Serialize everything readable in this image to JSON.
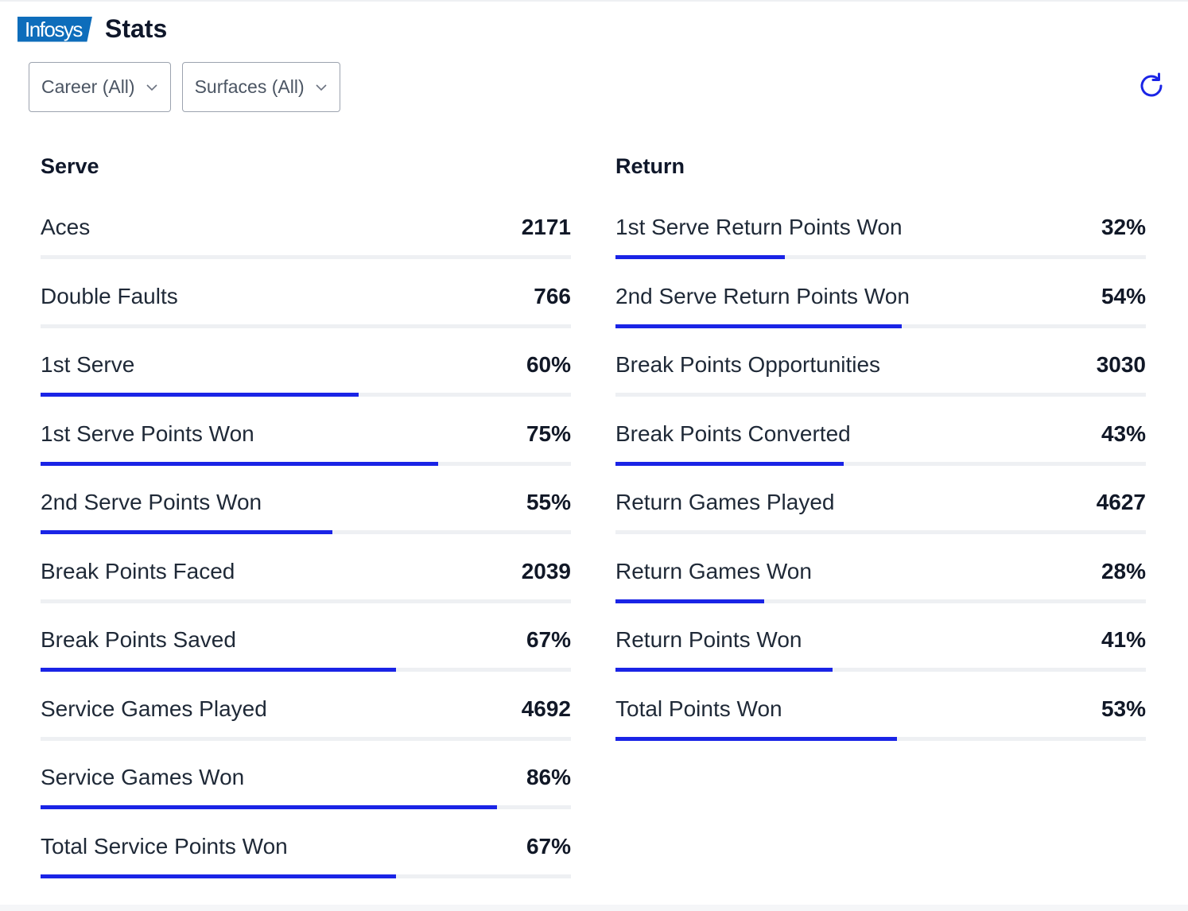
{
  "header": {
    "logo_text": "Infosys",
    "title": "Stats"
  },
  "filters": [
    {
      "label": "Career (All)"
    },
    {
      "label": "Surfaces (All)"
    }
  ],
  "accent_color": "#1a24e6",
  "serve": {
    "heading": "Serve",
    "rows": [
      {
        "label": "Aces",
        "value": "2171"
      },
      {
        "label": "Double Faults",
        "value": "766"
      },
      {
        "label": "1st Serve",
        "value": "60%",
        "percent": 60
      },
      {
        "label": "1st Serve Points Won",
        "value": "75%",
        "percent": 75
      },
      {
        "label": "2nd Serve Points Won",
        "value": "55%",
        "percent": 55
      },
      {
        "label": "Break Points Faced",
        "value": "2039"
      },
      {
        "label": "Break Points Saved",
        "value": "67%",
        "percent": 67
      },
      {
        "label": "Service Games Played",
        "value": "4692"
      },
      {
        "label": "Service Games Won",
        "value": "86%",
        "percent": 86
      },
      {
        "label": "Total Service Points Won",
        "value": "67%",
        "percent": 67
      }
    ]
  },
  "return": {
    "heading": "Return",
    "rows": [
      {
        "label": "1st Serve Return Points Won",
        "value": "32%",
        "percent": 32
      },
      {
        "label": "2nd Serve Return Points Won",
        "value": "54%",
        "percent": 54
      },
      {
        "label": "Break Points Opportunities",
        "value": "3030"
      },
      {
        "label": "Break Points Converted",
        "value": "43%",
        "percent": 43
      },
      {
        "label": "Return Games Played",
        "value": "4627"
      },
      {
        "label": "Return Games Won",
        "value": "28%",
        "percent": 28
      },
      {
        "label": "Return Points Won",
        "value": "41%",
        "percent": 41
      },
      {
        "label": "Total Points Won",
        "value": "53%",
        "percent": 53
      }
    ]
  }
}
